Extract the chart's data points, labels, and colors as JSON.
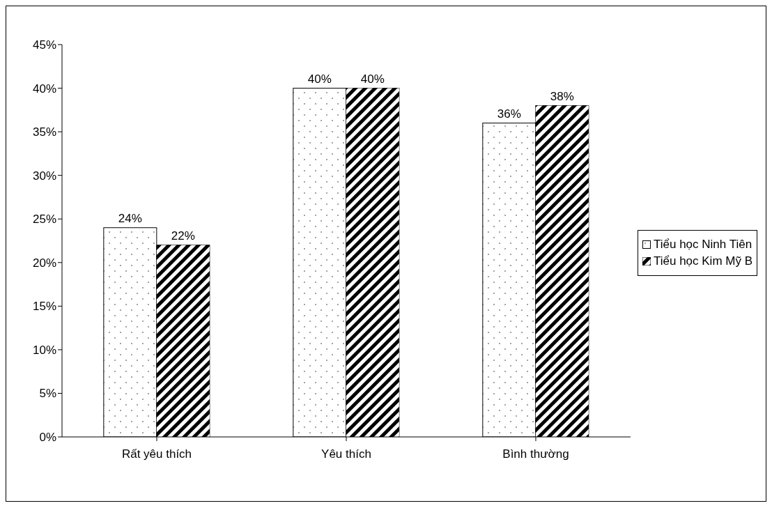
{
  "chart_data": {
    "type": "bar",
    "categories": [
      "Rất yêu thích",
      "Yêu thích",
      "Bình thường"
    ],
    "series": [
      {
        "name": "Tiểu học Ninh Tiên",
        "color": "#ffffff",
        "values": [
          24,
          40,
          36
        ],
        "value_labels": [
          "24%",
          "40%",
          "36%"
        ]
      },
      {
        "name": "Tiểu học Kim Mỹ B",
        "color": "#000000",
        "values": [
          22,
          40,
          38
        ],
        "value_labels": [
          "22%",
          "40%",
          "38%"
        ]
      }
    ],
    "ylim": [
      0,
      45
    ],
    "yticks": [
      {
        "value": 0,
        "label": "0%"
      },
      {
        "value": 5,
        "label": "5%"
      },
      {
        "value": 10,
        "label": "10%"
      },
      {
        "value": 15,
        "label": "15%"
      },
      {
        "value": 20,
        "label": "20%"
      },
      {
        "value": 25,
        "label": "25%"
      },
      {
        "value": 30,
        "label": "30%"
      },
      {
        "value": 35,
        "label": "35%"
      },
      {
        "value": 40,
        "label": "40%"
      },
      {
        "value": 45,
        "label": "45%"
      }
    ],
    "grid": false,
    "legend": "right"
  }
}
